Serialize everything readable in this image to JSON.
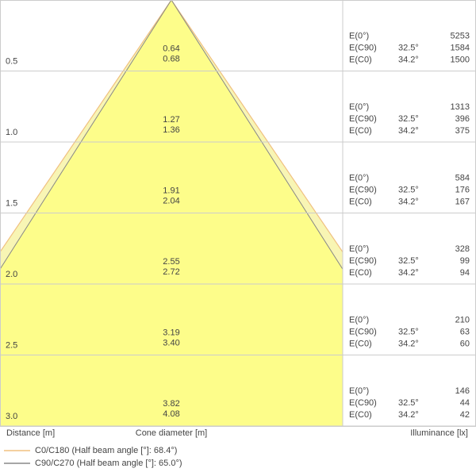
{
  "labels": {
    "e0": "E(0°)",
    "ec90": "E(C90)",
    "ec0": "E(C0)",
    "angle_c90": "32.5°",
    "angle_c0": "34.2°"
  },
  "rows": [
    {
      "distance": "0.5",
      "diam_c90": "0.64",
      "diam_c0": "0.68",
      "e0": "5253",
      "ec90": "1584",
      "ec0": "1500"
    },
    {
      "distance": "1.0",
      "diam_c90": "1.27",
      "diam_c0": "1.36",
      "e0": "1313",
      "ec90": "396",
      "ec0": "375"
    },
    {
      "distance": "1.5",
      "diam_c90": "1.91",
      "diam_c0": "2.04",
      "e0": "584",
      "ec90": "176",
      "ec0": "167"
    },
    {
      "distance": "2.0",
      "diam_c90": "2.55",
      "diam_c0": "2.72",
      "e0": "328",
      "ec90": "99",
      "ec0": "94"
    },
    {
      "distance": "2.5",
      "diam_c90": "3.19",
      "diam_c0": "3.40",
      "e0": "210",
      "ec90": "63",
      "ec0": "60"
    },
    {
      "distance": "3.0",
      "diam_c90": "3.82",
      "diam_c0": "4.08",
      "e0": "146",
      "ec90": "44",
      "ec0": "42"
    }
  ],
  "axis_labels": {
    "distance": "Distance [m]",
    "diameter": "Cone diameter [m]",
    "illuminance": "Illuminance [lx]"
  },
  "legend": {
    "c0": "C0/C180 (Half beam angle [°]: 68.4°)",
    "c90": "C90/C270 (Half beam angle [°]: 65.0°)"
  }
}
